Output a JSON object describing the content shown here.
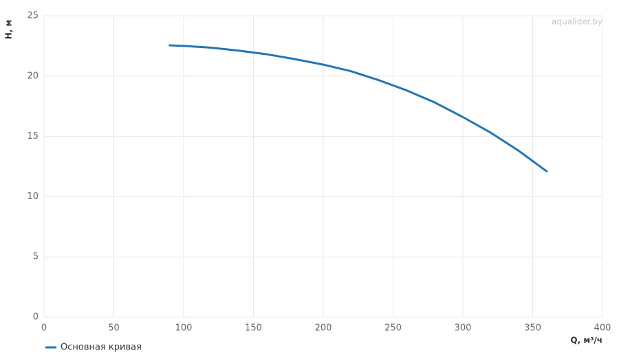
{
  "chart_data": {
    "type": "line",
    "watermark": "aqualider.by",
    "x_label": "Q, м³/ч",
    "y_label": "H, м",
    "x": [
      90,
      100,
      120,
      140,
      160,
      180,
      200,
      220,
      240,
      260,
      280,
      300,
      320,
      340,
      360
    ],
    "series": [
      {
        "name": "Основная кривая",
        "color": "#2275b4",
        "values": [
          22.55,
          22.5,
          22.35,
          22.1,
          21.8,
          21.4,
          20.95,
          20.4,
          19.65,
          18.8,
          17.8,
          16.6,
          15.3,
          13.8,
          12.1
        ]
      }
    ],
    "xlim": [
      0,
      400
    ],
    "xticks": [
      0,
      50,
      100,
      150,
      200,
      250,
      300,
      350,
      400
    ],
    "ylim": [
      0,
      25
    ],
    "yticks": [
      0,
      5,
      10,
      15,
      20,
      25
    ],
    "grid": true,
    "legend": "bottom-left"
  }
}
